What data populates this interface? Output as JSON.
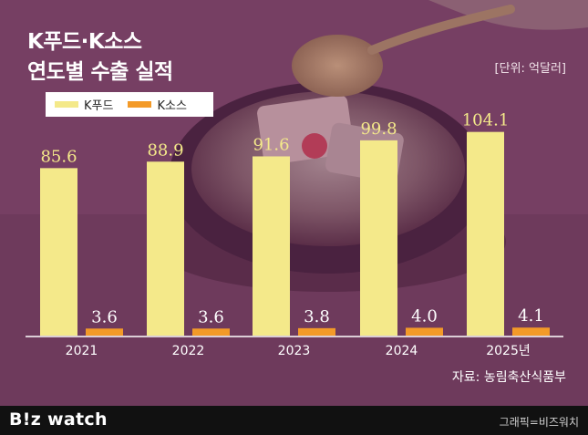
{
  "header": {
    "title_line1": "K푸드·K소스",
    "title_line2": "연도별 수출 실적",
    "unit": "[단위: 억달러]"
  },
  "legend": {
    "items": [
      {
        "label": "K푸드",
        "color": "#f4e98a"
      },
      {
        "label": "K소스",
        "color": "#f39a28"
      }
    ]
  },
  "chart_data": {
    "type": "bar",
    "categories": [
      "2021",
      "2022",
      "2023",
      "2024",
      "2025년"
    ],
    "series": [
      {
        "name": "K푸드",
        "values": [
          85.6,
          88.9,
          91.6,
          99.8,
          104.1
        ],
        "color": "#f4e98a"
      },
      {
        "name": "K소스",
        "values": [
          3.6,
          3.6,
          3.8,
          4.0,
          4.1
        ],
        "color": "#f39a28"
      }
    ],
    "title": "연도별 수출 실적",
    "ylabel": "",
    "ylim": [
      0,
      110
    ],
    "grid": false,
    "legend": "top-left"
  },
  "source": "자료: 농림축산식품부",
  "footer": {
    "logo": "B!z watch",
    "credit": "그래픽=비즈워치"
  }
}
